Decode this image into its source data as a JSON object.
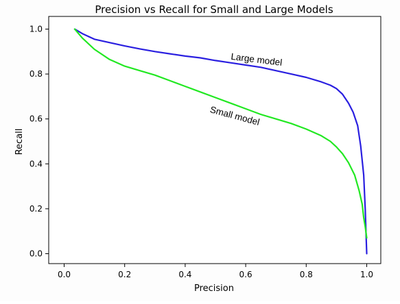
{
  "chart_data": {
    "type": "line",
    "title": "Precision vs Recall for Small and Large Models",
    "xlabel": "Precision",
    "ylabel": "Recall",
    "xlim": [
      0.0,
      1.0
    ],
    "ylim": [
      0.0,
      1.0
    ],
    "xticks": [
      "0.0",
      "0.2",
      "0.4",
      "0.6",
      "0.8",
      "1.0"
    ],
    "yticks": [
      "0.0",
      "0.2",
      "0.4",
      "0.6",
      "0.8",
      "1.0"
    ],
    "grid": false,
    "legend": "none",
    "series": [
      {
        "key": "large",
        "color": "#2a1fe0",
        "x": [
          0.035,
          0.06,
          0.1,
          0.15,
          0.2,
          0.25,
          0.3,
          0.35,
          0.4,
          0.45,
          0.5,
          0.55,
          0.6,
          0.65,
          0.7,
          0.75,
          0.8,
          0.85,
          0.88,
          0.9,
          0.92,
          0.94,
          0.955,
          0.97,
          0.98,
          0.99,
          0.995,
          0.998,
          1.0
        ],
        "y": [
          1.0,
          0.98,
          0.955,
          0.94,
          0.925,
          0.912,
          0.9,
          0.89,
          0.88,
          0.872,
          0.86,
          0.85,
          0.84,
          0.83,
          0.815,
          0.8,
          0.785,
          0.765,
          0.75,
          0.735,
          0.71,
          0.67,
          0.63,
          0.57,
          0.48,
          0.35,
          0.2,
          0.08,
          0.0
        ]
      },
      {
        "key": "small",
        "color": "#22e822",
        "x": [
          0.035,
          0.06,
          0.1,
          0.15,
          0.2,
          0.25,
          0.3,
          0.35,
          0.4,
          0.45,
          0.5,
          0.55,
          0.6,
          0.65,
          0.7,
          0.75,
          0.8,
          0.85,
          0.88,
          0.9,
          0.92,
          0.94,
          0.96,
          0.975,
          0.985,
          0.99,
          0.995,
          1.0
        ],
        "y": [
          1.0,
          0.96,
          0.91,
          0.865,
          0.835,
          0.815,
          0.795,
          0.77,
          0.745,
          0.72,
          0.695,
          0.67,
          0.645,
          0.62,
          0.6,
          0.58,
          0.555,
          0.525,
          0.5,
          0.475,
          0.445,
          0.405,
          0.35,
          0.28,
          0.22,
          0.16,
          0.12,
          0.07
        ]
      }
    ],
    "annotations": [
      {
        "text": "Large model",
        "x": 0.55,
        "y": 0.865,
        "rotation": 7
      },
      {
        "text": "Small model",
        "x": 0.48,
        "y": 0.63,
        "rotation": 15
      }
    ]
  }
}
